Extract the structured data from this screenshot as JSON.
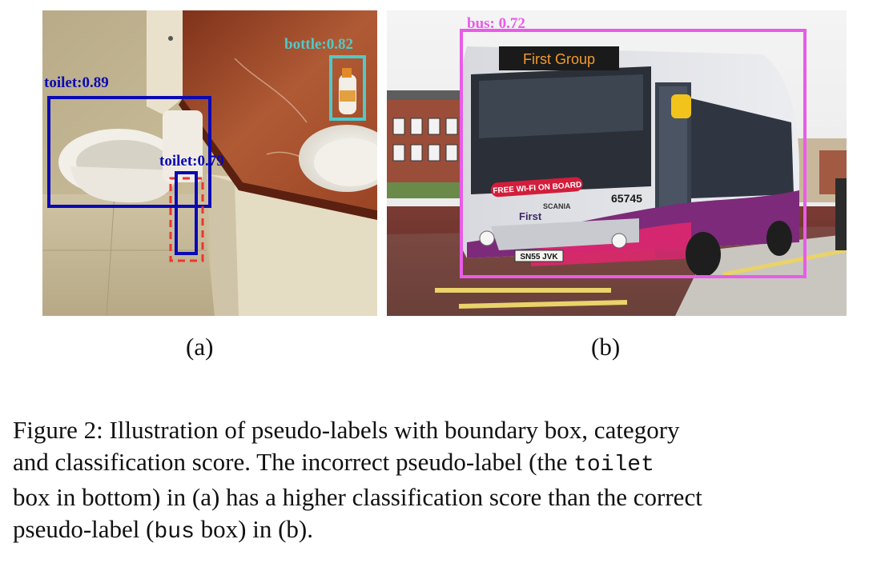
{
  "panel_a": {
    "detections": [
      {
        "label_text": "toilet:0.89",
        "color": "#0a0ab4",
        "style": "solid"
      },
      {
        "label_text": "toilet:0.79",
        "color": "#0a0ab4",
        "style": "solid"
      },
      {
        "label_text": "bottle:0.82",
        "color": "#4fc9c9",
        "style": "solid"
      }
    ],
    "ground_truth_box": {
      "color": "#e8392b",
      "style": "dashed"
    },
    "label": "(a)"
  },
  "panel_b": {
    "detections": [
      {
        "label_text": "bus: 0.72",
        "color": "#e85ce8",
        "style": "solid"
      }
    ],
    "bus_signs": {
      "destination": "First Group",
      "banner": "FREE WI-FI ON BOARD",
      "fleet_number": "65745",
      "brand": "First",
      "maker": "SCANIA",
      "plate": "SN55 JVK"
    },
    "label": "(b)"
  },
  "caption": {
    "line1": "Figure 2: Illustration of pseudo-labels with boundary box, category",
    "line2_a": "and classification score.  The incorrect pseudo-label (the ",
    "line2_code": "toilet",
    "line3": "box in bottom) in (a) has a higher classification score than the correct",
    "line4_a": "pseudo-label (",
    "line4_code": "bus",
    "line4_b": " box) in (b)."
  }
}
